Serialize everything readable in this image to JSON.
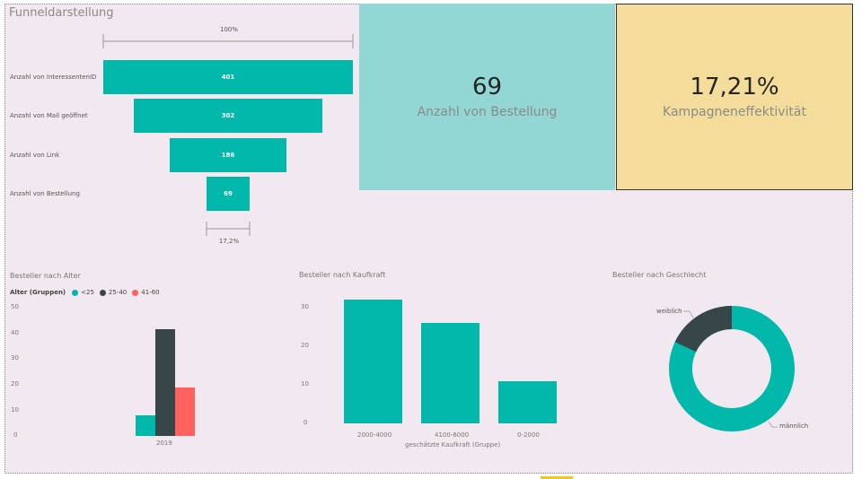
{
  "funnel": {
    "title": "Funneldarstellung",
    "top_pct": "100%",
    "bottom_pct": "17,2%",
    "stages": [
      {
        "label": "Anzahl von InteressentenID",
        "value": 401
      },
      {
        "label": "Anzahl von Mail geöffnet",
        "value": 302
      },
      {
        "label": "Anzahl von Link",
        "value": 186
      },
      {
        "label": "Anzahl von Bestellung",
        "value": 69
      }
    ]
  },
  "card_orders": {
    "value": "69",
    "label": "Anzahl von Bestellung",
    "bg": "#93d7d5"
  },
  "card_effect": {
    "value": "17,21%",
    "label": "Kampagneneffektivität",
    "bg": "#f4dd9a"
  },
  "colors": {
    "teal": "#01b8aa",
    "dark": "#374649",
    "red": "#fd625e"
  },
  "chart_data": [
    {
      "type": "bar",
      "title": "Besteller nach Alter",
      "legend_title": "Alter (Gruppen)",
      "legend_position": "top-left",
      "categories": [
        "2019"
      ],
      "series": [
        {
          "name": "<25",
          "values": [
            8
          ]
        },
        {
          "name": "25-40",
          "values": [
            42
          ]
        },
        {
          "name": "41-60",
          "values": [
            19
          ]
        }
      ],
      "yticks": [
        "50",
        "40",
        "30",
        "20",
        "10",
        "0"
      ],
      "ylim": [
        0,
        50
      ]
    },
    {
      "type": "bar",
      "title": "Besteller nach Kaufkraft",
      "xlabel": "geschätzte Kaufkraft (Gruppe)",
      "categories": [
        "2000-4000",
        "4100-6000",
        "0-2000"
      ],
      "values": [
        32,
        26,
        11
      ],
      "yticks": [
        "30",
        "20",
        "10",
        "0"
      ],
      "ylim": [
        0,
        35
      ]
    },
    {
      "type": "pie",
      "title": "Besteller nach Geschlecht",
      "labels": [
        "männlich",
        "weiblich"
      ],
      "values": [
        82,
        18
      ]
    }
  ]
}
